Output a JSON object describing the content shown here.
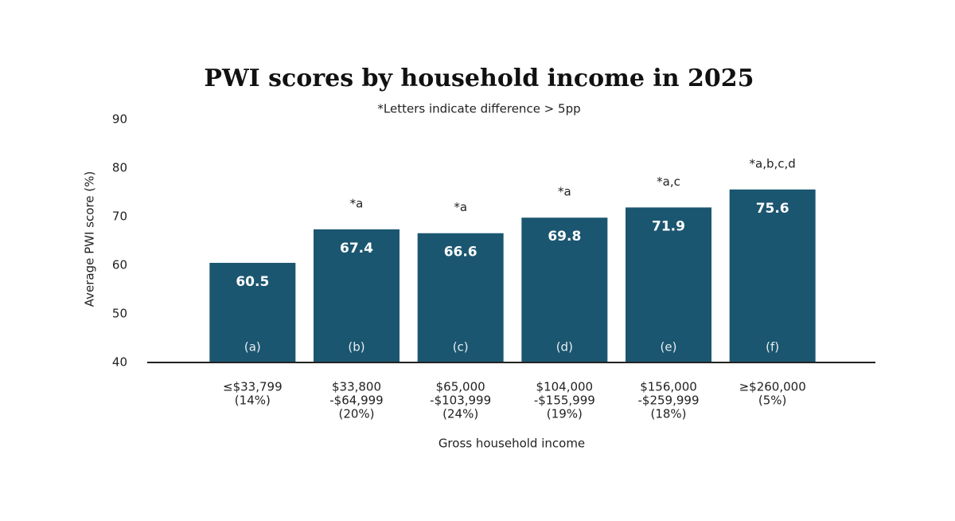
{
  "chart_data": {
    "type": "bar",
    "title": "PWI scores by household income in 2025",
    "subtitle": "*Letters indicate difference > 5pp",
    "y_label": "Average PWI score (%)",
    "x_label": "Gross household income",
    "categories": [
      [
        "≤$33,799",
        "(14%)"
      ],
      [
        "$33,800",
        "-$64,999",
        "(20%)"
      ],
      [
        "$65,000",
        "-$103,999",
        "(24%)"
      ],
      [
        "$104,000",
        "-$155,999",
        "(19%)"
      ],
      [
        "$156,000",
        "-$259,999",
        "(18%)"
      ],
      [
        "≥$260,000",
        "(5%)"
      ]
    ],
    "values": [
      60.5,
      67.4,
      66.6,
      69.8,
      71.9,
      75.6
    ],
    "bar_letters": [
      "(a)",
      "(b)",
      "(c)",
      "(d)",
      "(e)",
      "(f)"
    ],
    "annotations": [
      null,
      "*a",
      "*a",
      "*a",
      "*a,c",
      "*a,b,c,d"
    ],
    "color": "#1b5670",
    "ylim": [
      40,
      90
    ],
    "yticks": [
      40,
      50,
      60,
      70,
      80,
      90
    ],
    "grid": false
  }
}
